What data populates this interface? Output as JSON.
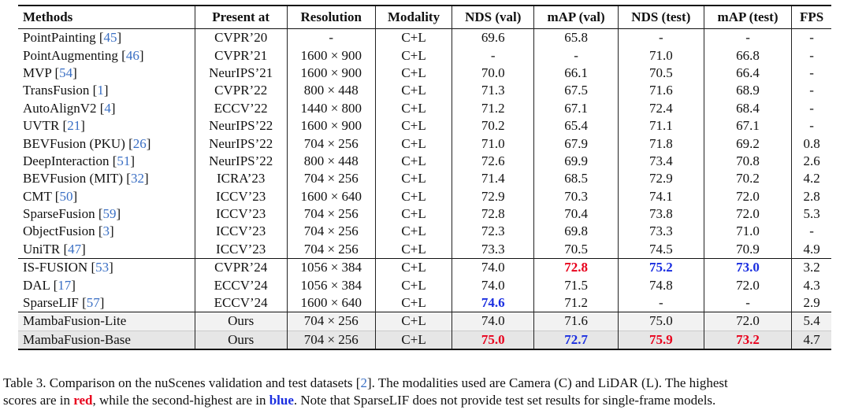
{
  "headers": [
    "Methods",
    "Present at",
    "Resolution",
    "Modality",
    "NDS (val)",
    "mAP (val)",
    "NDS (test)",
    "mAP (test)",
    "FPS"
  ],
  "rows": [
    {
      "name": "PointPainting",
      "ref": "45",
      "venue": "CVPR’20",
      "res": "-",
      "mod": "C+L",
      "nds_val": "69.6",
      "map_val": "65.8",
      "nds_test": "-",
      "map_test": "-",
      "fps": "-"
    },
    {
      "name": "PointAugmenting",
      "ref": "46",
      "venue": "CVPR’21",
      "res": "1600 × 900",
      "mod": "C+L",
      "nds_val": "-",
      "map_val": "-",
      "nds_test": "71.0",
      "map_test": "66.8",
      "fps": "-"
    },
    {
      "name": "MVP",
      "ref": "54",
      "venue": "NeurIPS’21",
      "res": "1600 × 900",
      "mod": "C+L",
      "nds_val": "70.0",
      "map_val": "66.1",
      "nds_test": "70.5",
      "map_test": "66.4",
      "fps": "-"
    },
    {
      "name": "TransFusion",
      "ref": "1",
      "venue": "CVPR’22",
      "res": "800 × 448",
      "mod": "C+L",
      "nds_val": "71.3",
      "map_val": "67.5",
      "nds_test": "71.6",
      "map_test": "68.9",
      "fps": "-"
    },
    {
      "name": "AutoAlignV2",
      "ref": "4",
      "venue": "ECCV’22",
      "res": "1440 × 800",
      "mod": "C+L",
      "nds_val": "71.2",
      "map_val": "67.1",
      "nds_test": "72.4",
      "map_test": "68.4",
      "fps": "-"
    },
    {
      "name": "UVTR",
      "ref": "21",
      "venue": "NeurIPS’22",
      "res": "1600 × 900",
      "mod": "C+L",
      "nds_val": "70.2",
      "map_val": "65.4",
      "nds_test": "71.1",
      "map_test": "67.1",
      "fps": "-"
    },
    {
      "name": "BEVFusion (PKU)",
      "ref": "26",
      "venue": "NeurIPS’22",
      "res": "704 × 256",
      "mod": "C+L",
      "nds_val": "71.0",
      "map_val": "67.9",
      "nds_test": "71.8",
      "map_test": "69.2",
      "fps": "0.8"
    },
    {
      "name": "DeepInteraction",
      "ref": "51",
      "venue": "NeurIPS’22",
      "res": "800 × 448",
      "mod": "C+L",
      "nds_val": "72.6",
      "map_val": "69.9",
      "nds_test": "73.4",
      "map_test": "70.8",
      "fps": "2.6"
    },
    {
      "name": "BEVFusion (MIT)",
      "ref": "32",
      "venue": "ICRA’23",
      "res": "704 × 256",
      "mod": "C+L",
      "nds_val": "71.4",
      "map_val": "68.5",
      "nds_test": "72.9",
      "map_test": "70.2",
      "fps": "4.2"
    },
    {
      "name": "CMT",
      "ref": "50",
      "venue": "ICCV’23",
      "res": "1600 × 640",
      "mod": "C+L",
      "nds_val": "72.9",
      "map_val": "70.3",
      "nds_test": "74.1",
      "map_test": "72.0",
      "fps": "2.8"
    },
    {
      "name": "SparseFusion",
      "ref": "59",
      "venue": "ICCV’23",
      "res": "704 × 256",
      "mod": "C+L",
      "nds_val": "72.8",
      "map_val": "70.4",
      "nds_test": "73.8",
      "map_test": "72.0",
      "fps": "5.3"
    },
    {
      "name": "ObjectFusion",
      "ref": "3",
      "venue": "ICCV’23",
      "res": "704 × 256",
      "mod": "C+L",
      "nds_val": "72.3",
      "map_val": "69.8",
      "nds_test": "73.3",
      "map_test": "71.0",
      "fps": "-"
    },
    {
      "name": "UniTR",
      "ref": "47",
      "venue": "ICCV’23",
      "res": "704 × 256",
      "mod": "C+L",
      "nds_val": "73.3",
      "map_val": "70.5",
      "nds_test": "74.5",
      "map_test": "70.9",
      "fps": "4.9"
    },
    {
      "name": "IS-FUSION",
      "ref": "53",
      "venue": "CVPR’24",
      "res": "1056 × 384",
      "mod": "C+L",
      "nds_val": "74.0",
      "map_val": "72.8",
      "nds_test": "75.2",
      "map_test": "73.0",
      "fps": "3.2",
      "hl": {
        "map_val": "red",
        "nds_test": "blue",
        "map_test": "blue"
      }
    },
    {
      "name": "DAL",
      "ref": "17",
      "venue": "ECCV’24",
      "res": "1056 × 384",
      "mod": "C+L",
      "nds_val": "74.0",
      "map_val": "71.5",
      "nds_test": "74.8",
      "map_test": "72.0",
      "fps": "4.3"
    },
    {
      "name": "SparseLIF",
      "ref": "57",
      "venue": "ECCV’24",
      "res": "1600 × 640",
      "mod": "C+L",
      "nds_val": "74.6",
      "map_val": "71.2",
      "nds_test": "-",
      "map_test": "-",
      "fps": "2.9",
      "hl": {
        "nds_val": "blue"
      }
    },
    {
      "name": "MambaFusion-Lite",
      "ref": "",
      "venue": "Ours",
      "res": "704 × 256",
      "mod": "C+L",
      "nds_val": "74.0",
      "map_val": "71.6",
      "nds_test": "75.0",
      "map_test": "72.0",
      "fps": "5.4"
    },
    {
      "name": "MambaFusion-Base",
      "ref": "",
      "venue": "Ours",
      "res": "704 × 256",
      "mod": "C+L",
      "nds_val": "75.0",
      "map_val": "72.7",
      "nds_test": "75.9",
      "map_test": "73.2",
      "fps": "4.7",
      "hl": {
        "nds_val": "red",
        "map_val": "blue",
        "nds_test": "red",
        "map_test": "red"
      }
    }
  ],
  "caption": {
    "p1": "Table 3. Comparison on the nuScenes validation and test datasets [",
    "ref": "2",
    "p2": "]. The modalities used are Camera (C) and LiDAR (L). The highest",
    "p3": "scores are in ",
    "red_word": "red",
    "p4": ", while the second-highest are in ",
    "blue_word": "blue",
    "p5": ". Note that SparseLIF does not provide test set results for single-frame models."
  },
  "colors": {
    "red": "#e8001c",
    "blue": "#1a2ee0",
    "ref": "#3a6fc4"
  }
}
